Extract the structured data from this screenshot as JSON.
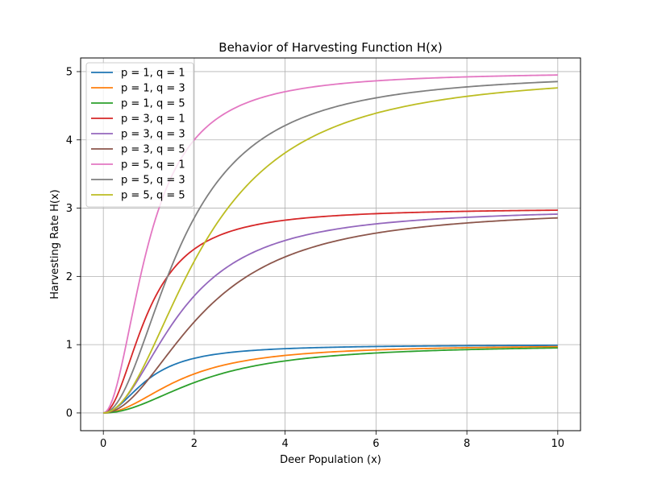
{
  "chart_data": {
    "type": "line",
    "title": "Behavior of Harvesting Function H(x)",
    "xlabel": "Deer Population (x)",
    "ylabel": "Harvesting Rate H(x)",
    "xlim": [
      -0.5,
      10.5
    ],
    "ylim": [
      -0.26,
      5.2
    ],
    "xticks": [
      0,
      2,
      4,
      6,
      8,
      10
    ],
    "yticks": [
      0,
      1,
      2,
      3,
      4,
      5
    ],
    "grid": true,
    "legend_position": "top-left",
    "series": [
      {
        "name": "p = 1, q = 1",
        "p": 1,
        "q": 1,
        "color": "#1f77b4"
      },
      {
        "name": "p = 1, q = 3",
        "p": 1,
        "q": 3,
        "color": "#ff7f0e"
      },
      {
        "name": "p = 1, q = 5",
        "p": 1,
        "q": 5,
        "color": "#2ca02c"
      },
      {
        "name": "p = 3, q = 1",
        "p": 3,
        "q": 1,
        "color": "#d62728"
      },
      {
        "name": "p = 3, q = 3",
        "p": 3,
        "q": 3,
        "color": "#9467bd"
      },
      {
        "name": "p = 3, q = 5",
        "p": 3,
        "q": 5,
        "color": "#8c564b"
      },
      {
        "name": "p = 5, q = 1",
        "p": 5,
        "q": 1,
        "color": "#e377c2"
      },
      {
        "name": "p = 5, q = 3",
        "p": 5,
        "q": 3,
        "color": "#7f7f7f"
      },
      {
        "name": "p = 5, q = 5",
        "p": 5,
        "q": 5,
        "color": "#bcbd22"
      }
    ]
  }
}
